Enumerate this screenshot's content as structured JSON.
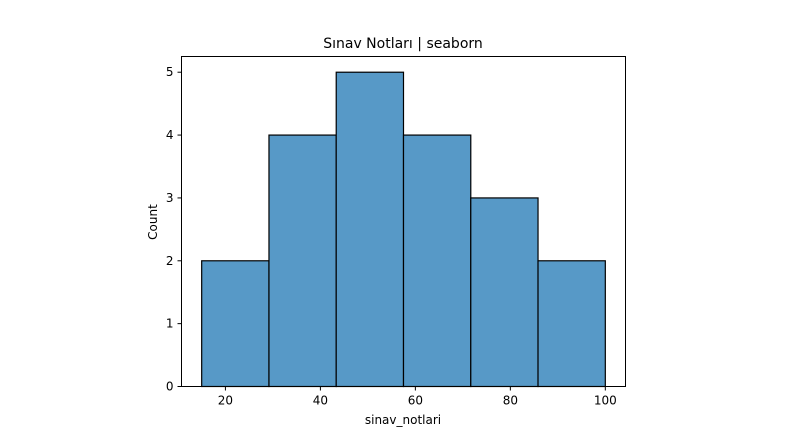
{
  "chart_data": {
    "type": "bar",
    "title": "Sınav Notları | seaborn",
    "xlabel": "sinav_notlari",
    "ylabel": "Count",
    "bins": [
      {
        "start": 15.0,
        "end": 29.17,
        "count": 2
      },
      {
        "start": 29.17,
        "end": 43.33,
        "count": 4
      },
      {
        "start": 43.33,
        "end": 57.5,
        "count": 5
      },
      {
        "start": 57.5,
        "end": 71.67,
        "count": 4
      },
      {
        "start": 71.67,
        "end": 85.83,
        "count": 3
      },
      {
        "start": 85.83,
        "end": 100.0,
        "count": 2
      }
    ],
    "xlim": [
      10.75,
      104.25
    ],
    "ylim": [
      0,
      5.25
    ],
    "xticks": [
      20,
      40,
      60,
      80,
      100
    ],
    "yticks": [
      0,
      1,
      2,
      3,
      4,
      5
    ],
    "grid": false,
    "bar_color": "#5799c7",
    "edge_color": "#000000"
  }
}
